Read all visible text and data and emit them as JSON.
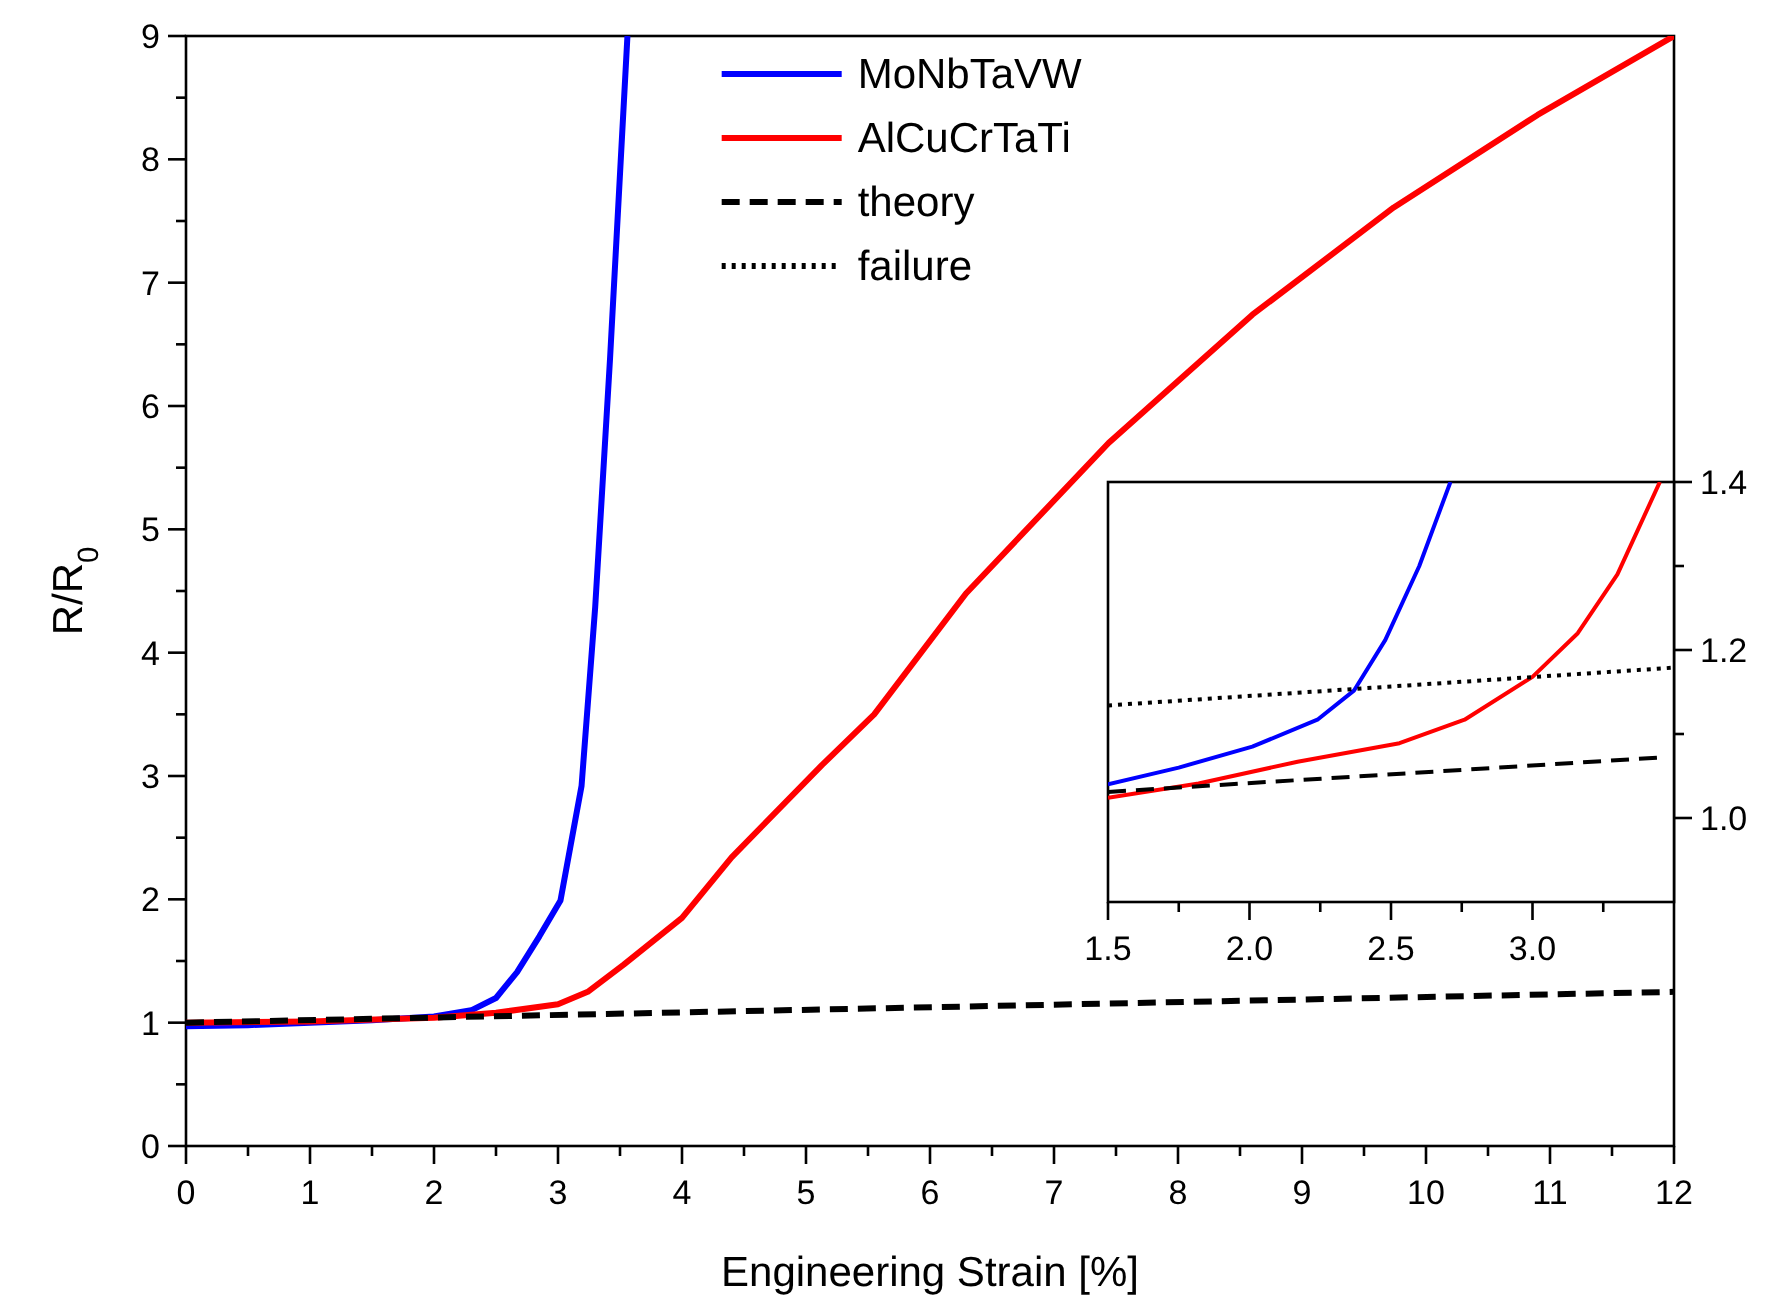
{
  "chart_data": [
    {
      "type": "line",
      "xlabel": "Engineering Strain [%]",
      "ylabel": "R/R$_{0}$",
      "xlim": [
        0,
        12
      ],
      "ylim": [
        0,
        9
      ],
      "xticks": [
        0,
        {
          "value": 0.5,
          "label": null
        },
        1,
        {
          "value": 1.5,
          "label": null
        },
        2,
        {
          "value": 2.5,
          "label": null
        },
        3,
        {
          "value": 3.5,
          "label": null
        },
        4,
        {
          "value": 4.5,
          "label": null
        },
        5,
        {
          "value": 5.5,
          "label": null
        },
        6,
        {
          "value": 6.5,
          "label": null
        },
        7,
        {
          "value": 7.5,
          "label": null
        },
        8,
        {
          "value": 8.5,
          "label": null
        },
        9,
        {
          "value": 9.5,
          "label": null
        },
        10,
        {
          "value": 10.5,
          "label": null
        },
        11,
        {
          "value": 11.5,
          "label": null
        },
        12
      ],
      "yticks": [
        0,
        {
          "value": 0.5,
          "label": null
        },
        1,
        {
          "value": 1.5,
          "label": null
        },
        2,
        {
          "value": 2.5,
          "label": null
        },
        3,
        {
          "value": 3.5,
          "label": null
        },
        4,
        {
          "value": 4.5,
          "label": null
        },
        5,
        {
          "value": 5.5,
          "label": null
        },
        6,
        {
          "value": 6.5,
          "label": null
        },
        7,
        {
          "value": 7.5,
          "label": null
        },
        8,
        {
          "value": 8.5,
          "label": null
        },
        9
      ],
      "grid": false,
      "legend": "top",
      "series": [
        {
          "name": "MoNbTaVW",
          "color": "#0000ff",
          "line_style": "solid",
          "x": [
            0,
            0.5,
            1,
            1.5,
            2,
            2.3,
            2.5,
            2.67,
            2.85,
            3.02,
            3.19,
            3.3,
            3.42,
            3.56
          ],
          "values": [
            0.97,
            0.98,
            1.0,
            1.02,
            1.05,
            1.1,
            1.2,
            1.41,
            1.7,
            1.99,
            2.92,
            4.37,
            6.39,
            9.0
          ]
        },
        {
          "name": "AlCuCrTaTi",
          "color": "#ff0000",
          "line_style": "solid",
          "x": [
            0,
            1,
            2,
            2.5,
            3,
            3.24,
            3.53,
            4,
            4.4,
            5.13,
            5.55,
            6.29,
            7.44,
            8.6,
            9.74,
            10.9,
            12
          ],
          "values": [
            1.0,
            1.01,
            1.04,
            1.08,
            1.15,
            1.25,
            1.47,
            1.85,
            2.34,
            3.09,
            3.5,
            4.48,
            5.7,
            6.74,
            7.61,
            8.36,
            9.0
          ]
        },
        {
          "name": "theory",
          "color": "#000000",
          "line_style": "dashed",
          "x": [
            0,
            12
          ],
          "values": [
            1.0,
            1.25
          ]
        },
        {
          "name": "failure",
          "color": "#000000",
          "line_style": "dotted"
        }
      ]
    },
    {
      "type": "line",
      "xlim": [
        1.5,
        3.5
      ],
      "ylim": [
        0.9,
        1.4
      ],
      "xticks": [
        {
          "value": 1.5,
          "label": "1.5"
        },
        {
          "value": 1.75,
          "label": null
        },
        {
          "value": 2,
          "label": "2.0"
        },
        {
          "value": 2.25,
          "label": null
        },
        {
          "value": 2.5,
          "label": "2.5"
        },
        {
          "value": 2.75,
          "label": null
        },
        {
          "value": 3,
          "label": "3.0"
        },
        {
          "value": 3.25,
          "label": null
        }
      ],
      "yticks": [
        {
          "value": 1,
          "label": "1.0"
        },
        {
          "value": 1.1,
          "label": null
        },
        {
          "value": 1.2,
          "label": "1.2"
        },
        {
          "value": 1.3,
          "label": null
        },
        {
          "value": 1.4,
          "label": "1.4"
        }
      ],
      "grid": false,
      "legend": false,
      "series": [
        {
          "color": "#0000ff",
          "line_style": "solid",
          "x": [
            1.5,
            1.75,
            2.01,
            2.24,
            2.37,
            2.48,
            2.6,
            2.71
          ],
          "values": [
            1.04,
            1.06,
            1.085,
            1.117,
            1.152,
            1.212,
            1.3,
            1.4
          ]
        },
        {
          "color": "#ff0000",
          "line_style": "solid",
          "x": [
            1.5,
            1.82,
            2.17,
            2.53,
            2.76,
            3.0,
            3.16,
            3.3,
            3.45
          ],
          "values": [
            1.024,
            1.041,
            1.067,
            1.089,
            1.117,
            1.168,
            1.22,
            1.29,
            1.4
          ]
        },
        {
          "color": "#000000",
          "line_style": "dashed",
          "x": [
            1.5,
            3.45
          ],
          "values": [
            1.031,
            1.072
          ]
        },
        {
          "color": "#000000",
          "line_style": "dotted",
          "x": [
            1.5,
            3.5
          ],
          "values": [
            1.134,
            1.179
          ]
        }
      ]
    }
  ]
}
